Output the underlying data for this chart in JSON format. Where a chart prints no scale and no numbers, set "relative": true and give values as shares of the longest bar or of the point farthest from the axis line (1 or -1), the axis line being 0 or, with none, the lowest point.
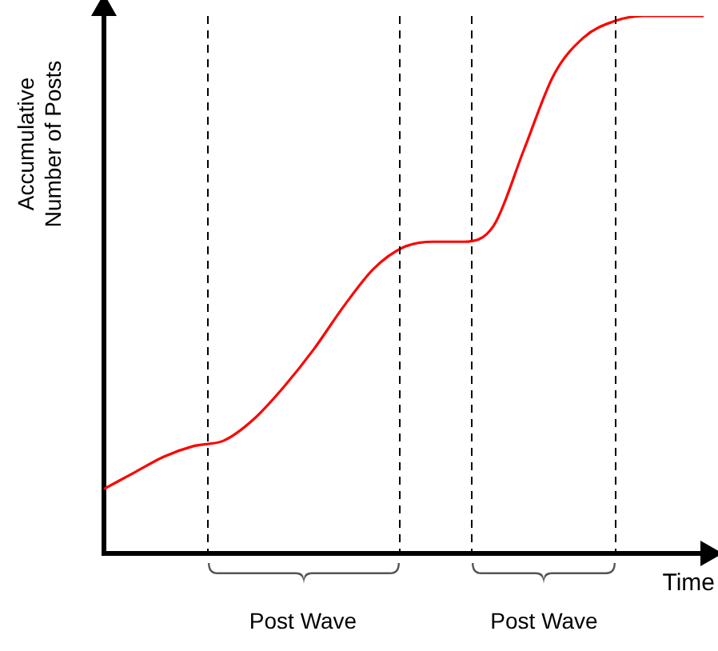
{
  "chart_data": {
    "type": "line",
    "relative": true,
    "xlabel": "Time",
    "ylabel": "Accumulative Number of Posts",
    "annotations": [
      "Post Wave",
      "Post Wave"
    ],
    "categories": [
      null,
      null,
      null,
      null,
      null,
      null,
      null,
      null,
      null,
      null,
      null,
      null,
      null,
      null,
      null,
      null,
      null,
      null,
      null,
      null,
      null
    ],
    "series": [
      {
        "color": "#ff0000",
        "values": [
          0.12,
          0.15,
          0.18,
          0.2,
          0.21,
          0.25,
          0.31,
          0.38,
          0.46,
          0.53,
          0.57,
          0.58,
          0.58,
          0.61,
          0.75,
          0.89,
          0.96,
          0.99,
          1,
          1,
          1
        ]
      }
    ],
    "grid": false,
    "legend": false,
    "marker": "none",
    "line_style": "solid",
    "tick_labels": false
  }
}
